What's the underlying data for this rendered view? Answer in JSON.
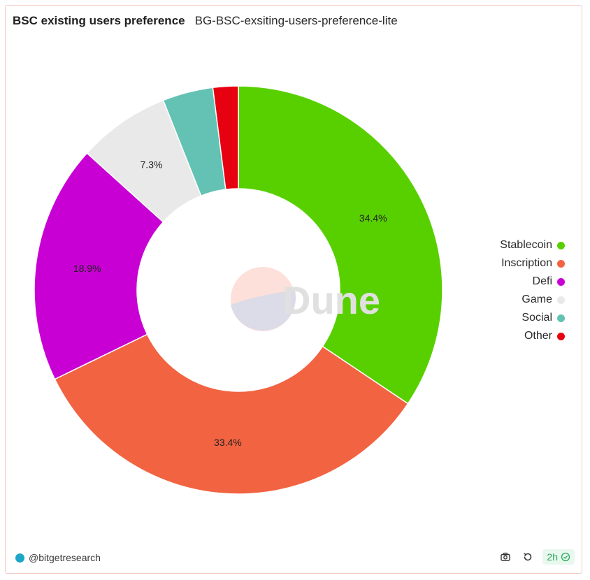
{
  "header": {
    "title": "BSC existing users preference",
    "subtitle": "BG-BSC-exsiting-users-preference-lite"
  },
  "watermark": {
    "text": "Dune"
  },
  "chart_data": {
    "type": "pie",
    "donut": true,
    "title": "BSC existing users preference",
    "legend_position": "right",
    "slices": [
      {
        "label": "Stablecoin",
        "value": 34.4,
        "display": "34.4%",
        "color": "#58d000"
      },
      {
        "label": "Inscription",
        "value": 33.4,
        "display": "33.4%",
        "color": "#f26341"
      },
      {
        "label": "Defi",
        "value": 18.9,
        "display": "18.9%",
        "color": "#c800d4"
      },
      {
        "label": "Game",
        "value": 7.3,
        "display": "7.3%",
        "color": "#e9e9e9"
      },
      {
        "label": "Social",
        "value": 4.0,
        "display": "",
        "color": "#63c2b3"
      },
      {
        "label": "Other",
        "value": 2.0,
        "display": "",
        "color": "#e60010"
      }
    ]
  },
  "footer": {
    "author": "@bitgetresearch",
    "refresh_label": "2h",
    "icons": [
      "camera-icon",
      "refresh-icon",
      "check-circle-icon"
    ]
  }
}
